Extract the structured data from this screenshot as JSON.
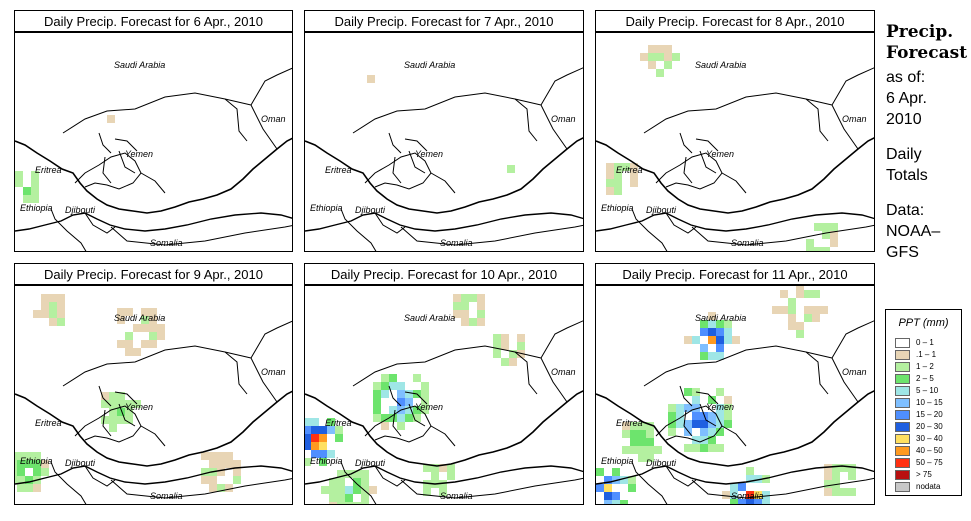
{
  "panels": [
    {
      "title": "Daily Precip. Forecast for  6 Apr., 2010",
      "seed": 1,
      "intensity": 0
    },
    {
      "title": "Daily Precip. Forecast for  7 Apr., 2010",
      "seed": 2,
      "intensity": 0
    },
    {
      "title": "Daily Precip. Forecast for  8 Apr., 2010",
      "seed": 3,
      "intensity": 1
    },
    {
      "title": "Daily Precip. Forecast for  9 Apr., 2010",
      "seed": 4,
      "intensity": 1
    },
    {
      "title": "Daily Precip. Forecast for  10 Apr., 2010",
      "seed": 5,
      "intensity": 2
    },
    {
      "title": "Daily Precip. Forecast for  11 Apr., 2010",
      "seed": 6,
      "intensity": 3
    }
  ],
  "map_labels": {
    "saudi": "Saudi Arabia",
    "oman": "Oman",
    "yemen": "Yemen",
    "eritrea": "Eritrea",
    "ethiopia": "Ethiopia",
    "djibouti": "Djibouti",
    "somalia": "Somalia"
  },
  "sidebar": {
    "head1": "Precip.",
    "head2": "Forecast",
    "asof": "as of:",
    "date1": "6 Apr.",
    "date2": "2010",
    "daily1": "Daily",
    "daily2": "Totals",
    "data1": "Data:",
    "data2": "NOAA–",
    "data3": "GFS"
  },
  "legend": {
    "title": "PPT (mm)",
    "items": [
      {
        "label": "0 – 1",
        "color": "#ffffff"
      },
      {
        "label": ".1 – 1",
        "color": "#e8d5b5"
      },
      {
        "label": "1 – 2",
        "color": "#b4f0a0"
      },
      {
        "label": "2 – 5",
        "color": "#6de46d"
      },
      {
        "label": "5 – 10",
        "color": "#9fe6e6"
      },
      {
        "label": "10 – 15",
        "color": "#7fbfff"
      },
      {
        "label": "15 – 20",
        "color": "#4f8fff"
      },
      {
        "label": "20 – 30",
        "color": "#1f5fe0"
      },
      {
        "label": "30 – 40",
        "color": "#ffe060"
      },
      {
        "label": "40 – 50",
        "color": "#ff9a20"
      },
      {
        "label": "50 – 75",
        "color": "#ff3010"
      },
      {
        "label": "> 75",
        "color": "#b81010"
      },
      {
        "label": "nodata",
        "color": "#c8c8c8"
      }
    ]
  }
}
